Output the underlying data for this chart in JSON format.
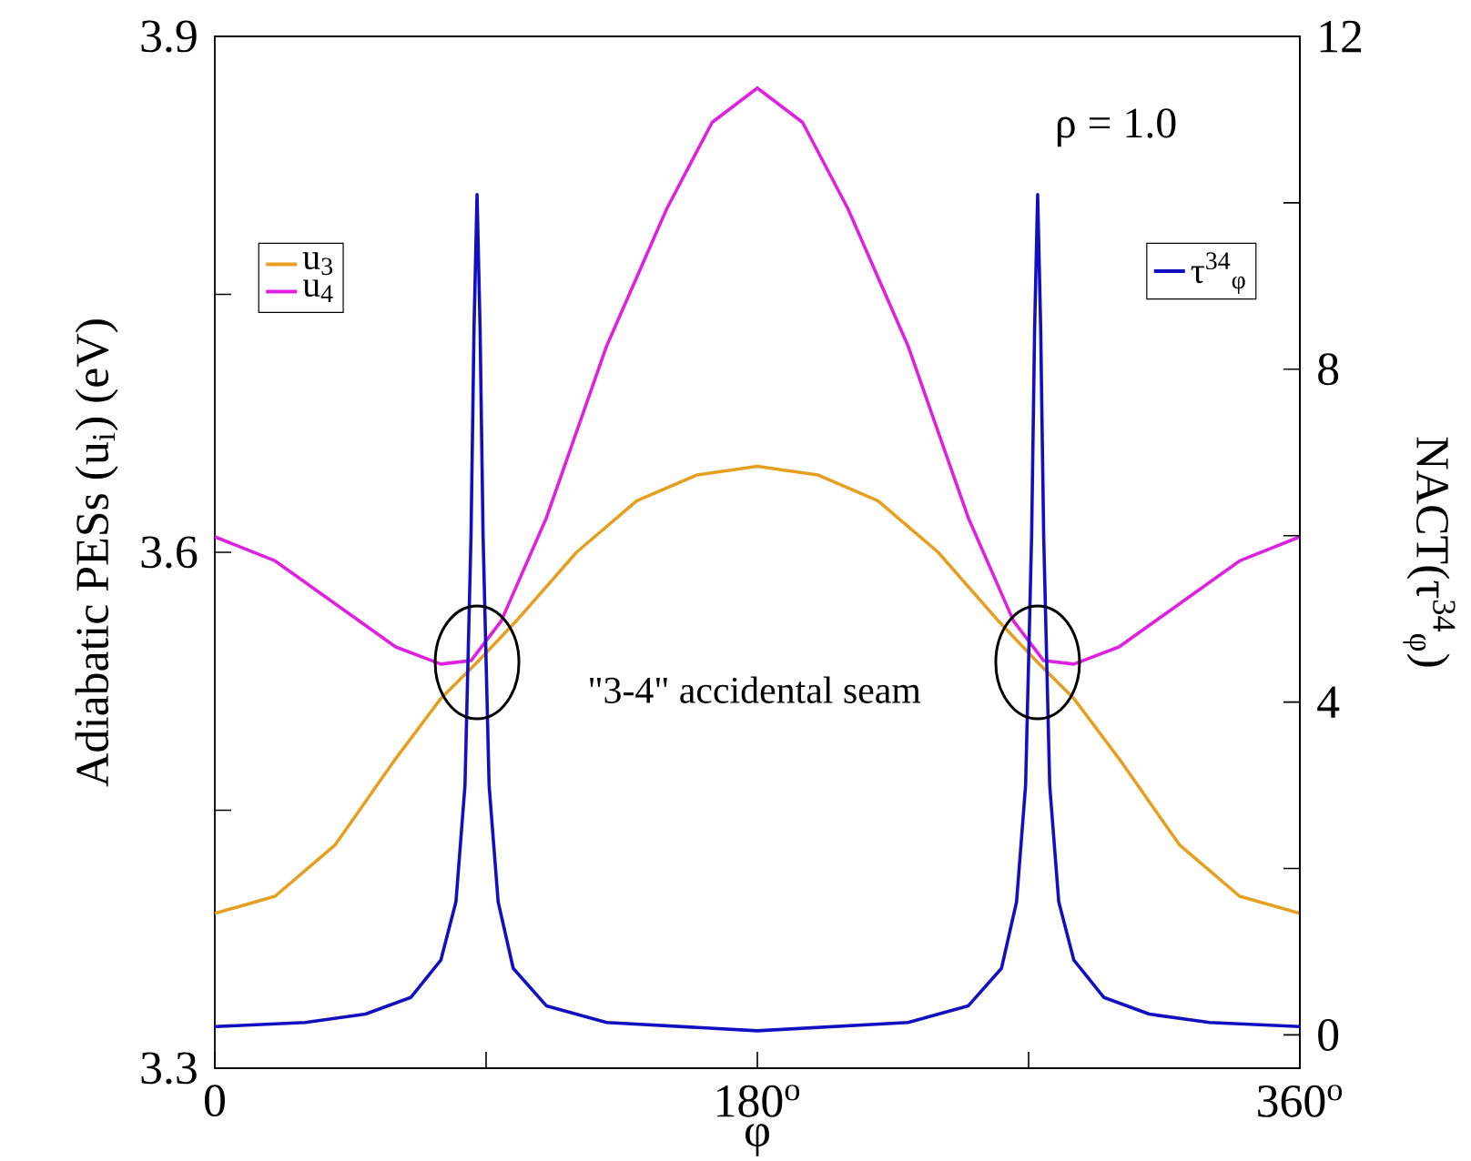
{
  "chart_data": {
    "type": "line",
    "xlabel": "φ",
    "ylabel": "Adiabatic PESs (u$_{i}$) (eV)",
    "y2label": "NACT(τ$^{34}$$_{φ}$)",
    "annotations": [
      "ρ = 1.0",
      "\"3-4\" accidental seam"
    ],
    "xlim": [
      0,
      360
    ],
    "xticks": [
      0,
      {
        "value": 90,
        "label": null
      },
      {
        "value": 180,
        "label": "180$^{o}$"
      },
      {
        "value": 270,
        "label": null
      },
      {
        "value": 360,
        "label": "360$^{o}$"
      }
    ],
    "ylim": [
      3.3,
      3.9
    ],
    "yticks": [
      3.3,
      {
        "value": 3.45,
        "label": null
      },
      3.6,
      {
        "value": 3.75,
        "label": null
      },
      3.9
    ],
    "y2lim": [
      -0.4,
      12
    ],
    "y2ticks": [
      0,
      {
        "value": 2,
        "label": null
      },
      4,
      {
        "value": 6,
        "label": null
      },
      8,
      {
        "value": 10,
        "label": null
      },
      12
    ],
    "legend": "top left",
    "series": [
      {
        "name": "u$_{3}$",
        "color": "#e6a021",
        "x": [
          0,
          20,
          40,
          60,
          75,
          87,
          100,
          120,
          140,
          160,
          180,
          200,
          220,
          240,
          260,
          273,
          285,
          300,
          320,
          340,
          360
        ],
        "values": [
          3.39,
          3.4,
          3.43,
          3.48,
          3.515,
          3.536,
          3.56,
          3.6,
          3.63,
          3.645,
          3.65,
          3.645,
          3.63,
          3.6,
          3.56,
          3.536,
          3.515,
          3.48,
          3.43,
          3.4,
          3.39
        ]
      },
      {
        "name": "u$_{4}$",
        "color": "#e020e0",
        "x": [
          0,
          20,
          40,
          60,
          75,
          85,
          95,
          110,
          130,
          150,
          165,
          180,
          195,
          210,
          230,
          250,
          265,
          275,
          285,
          300,
          320,
          340,
          360
        ],
        "values": [
          3.609,
          3.595,
          3.57,
          3.545,
          3.535,
          3.537,
          3.56,
          3.62,
          3.72,
          3.8,
          3.85,
          3.87,
          3.85,
          3.8,
          3.72,
          3.62,
          3.56,
          3.537,
          3.535,
          3.545,
          3.57,
          3.595,
          3.609
        ]
      },
      {
        "name": "τ$^{34}$$_{φ}$",
        "color": "#1010c0",
        "axis": "y2",
        "x": [
          0,
          30,
          50,
          65,
          75,
          80,
          83,
          85,
          86,
          87,
          88,
          89,
          91,
          94,
          99,
          110,
          130,
          180,
          230,
          250,
          261,
          266,
          269,
          271,
          272,
          273,
          274,
          275,
          277,
          280,
          285,
          295,
          310,
          330,
          360
        ],
        "values": [
          0.1,
          0.15,
          0.25,
          0.45,
          0.9,
          1.6,
          3,
          6,
          8.5,
          10.1,
          8.5,
          6,
          3,
          1.6,
          0.8,
          0.35,
          0.15,
          0.05,
          0.15,
          0.35,
          0.8,
          1.6,
          3,
          6,
          8.5,
          10.1,
          8.5,
          6,
          3,
          1.6,
          0.9,
          0.45,
          0.25,
          0.15,
          0.1
        ]
      }
    ]
  }
}
